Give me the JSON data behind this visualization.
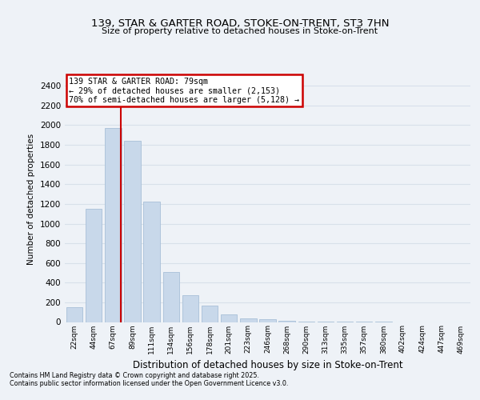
{
  "title": "139, STAR & GARTER ROAD, STOKE-ON-TRENT, ST3 7HN",
  "subtitle": "Size of property relative to detached houses in Stoke-on-Trent",
  "xlabel": "Distribution of detached houses by size in Stoke-on-Trent",
  "ylabel": "Number of detached properties",
  "footnote1": "Contains HM Land Registry data © Crown copyright and database right 2025.",
  "footnote2": "Contains public sector information licensed under the Open Government Licence v3.0.",
  "bar_color": "#c8d8ea",
  "bar_edge_color": "#a8c0d8",
  "property_line_color": "#cc0000",
  "annotation_box_color": "#cc0000",
  "annotation_line1": "139 STAR & GARTER ROAD: 79sqm",
  "annotation_line2": "← 29% of detached houses are smaller (2,153)",
  "annotation_line3": "70% of semi-detached houses are larger (5,128) →",
  "property_bin_index": 2,
  "property_line_x": 2.42,
  "ylim": [
    0,
    2500
  ],
  "yticks": [
    0,
    200,
    400,
    600,
    800,
    1000,
    1200,
    1400,
    1600,
    1800,
    2000,
    2200,
    2400
  ],
  "bin_labels": [
    "22sqm",
    "44sqm",
    "67sqm",
    "89sqm",
    "111sqm",
    "134sqm",
    "156sqm",
    "178sqm",
    "201sqm",
    "223sqm",
    "246sqm",
    "268sqm",
    "290sqm",
    "313sqm",
    "335sqm",
    "357sqm",
    "380sqm",
    "402sqm",
    "424sqm",
    "447sqm",
    "469sqm"
  ],
  "bar_heights": [
    150,
    1150,
    1970,
    1840,
    1220,
    510,
    270,
    165,
    75,
    40,
    25,
    12,
    6,
    3,
    2,
    1,
    1,
    0,
    0,
    0,
    0
  ],
  "background_color": "#eef2f7",
  "grid_color": "#d8e0ea"
}
